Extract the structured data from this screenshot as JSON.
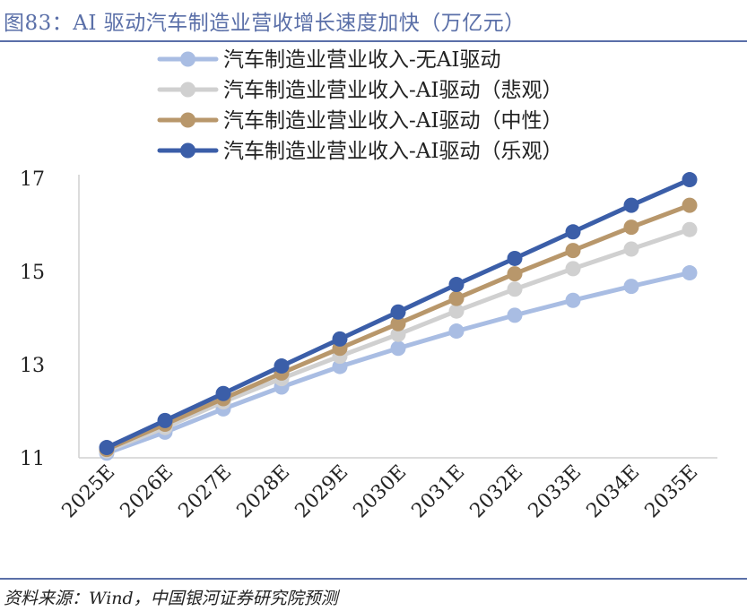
{
  "figure": {
    "title": "图83：AI 驱动汽车制造业营收增长速度加快（万亿元）",
    "source": "资料来源：Wind，中国银河证券研究院预测"
  },
  "chart_data": {
    "type": "line",
    "title": "",
    "xlabel": "",
    "ylabel": "",
    "categories": [
      "2025E",
      "2026E",
      "2027E",
      "2028E",
      "2029E",
      "2030E",
      "2031E",
      "2032E",
      "2033E",
      "2034E",
      "2035E"
    ],
    "ylim": [
      11,
      17
    ],
    "yticks": [
      11,
      13,
      15,
      17
    ],
    "grid": false,
    "legend_position": "top",
    "series": [
      {
        "name": "汽车制造业营业收入-无AI驱动",
        "color": "#a9bde3",
        "values": [
          11.1,
          11.55,
          12.05,
          12.52,
          12.96,
          13.35,
          13.72,
          14.06,
          14.38,
          14.68,
          14.97
        ]
      },
      {
        "name": "汽车制造业营业收入-AI驱动（悲观）",
        "color": "#d0d0d0",
        "values": [
          11.15,
          11.65,
          12.2,
          12.7,
          13.18,
          13.65,
          14.15,
          14.62,
          15.06,
          15.48,
          15.9
        ]
      },
      {
        "name": "汽车制造业营业收入-AI驱动（中性）",
        "color": "#b8976b",
        "values": [
          11.18,
          11.72,
          12.27,
          12.82,
          13.35,
          13.88,
          14.42,
          14.95,
          15.45,
          15.95,
          16.42
        ]
      },
      {
        "name": "汽车制造业营业收入-AI驱动（乐观）",
        "color": "#3b5ea8",
        "values": [
          11.22,
          11.8,
          12.38,
          12.97,
          13.55,
          14.13,
          14.72,
          15.28,
          15.85,
          16.42,
          16.97
        ]
      }
    ]
  }
}
